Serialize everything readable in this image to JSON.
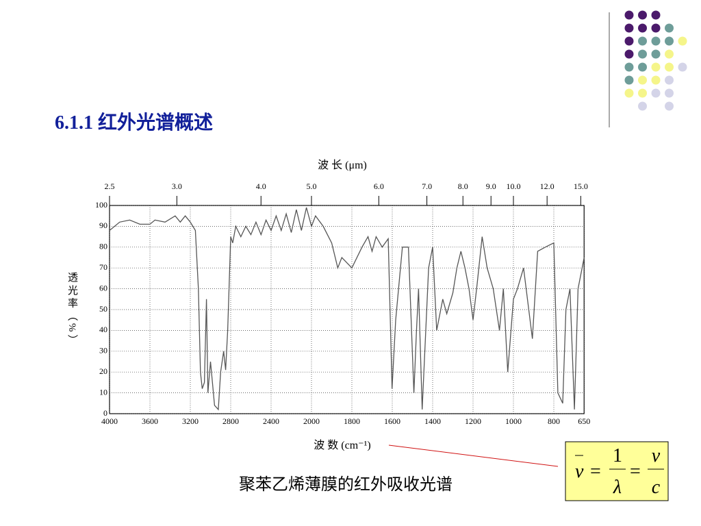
{
  "title": "6.1.1  红外光谱概述",
  "chart_data": {
    "type": "line",
    "top_label": "波  长 (μm)",
    "xlabel": "波  数 (cm⁻¹)",
    "ylabel": "透 光 率 （ % ）",
    "color": "#555555",
    "x": [
      4000,
      3900,
      3800,
      3700,
      3600,
      3550,
      3450,
      3350,
      3300,
      3250,
      3200,
      3150,
      3120,
      3100,
      3082,
      3060,
      3040,
      3026,
      3000,
      2960,
      2923,
      2900,
      2870,
      2850,
      2830,
      2800,
      2780,
      2750,
      2700,
      2650,
      2600,
      2550,
      2500,
      2450,
      2400,
      2350,
      2300,
      2250,
      2200,
      2150,
      2100,
      2050,
      2000,
      1980,
      1942,
      1900,
      1870,
      1850,
      1800,
      1750,
      1720,
      1700,
      1680,
      1650,
      1620,
      1601,
      1583,
      1550,
      1520,
      1493,
      1480,
      1470,
      1452,
      1420,
      1400,
      1380,
      1350,
      1330,
      1300,
      1280,
      1260,
      1240,
      1220,
      1200,
      1180,
      1155,
      1130,
      1100,
      1069,
      1050,
      1028,
      1000,
      980,
      950,
      906,
      880,
      842,
      800,
      780,
      756,
      740,
      720,
      698,
      680,
      650
    ],
    "values": [
      88,
      92,
      93,
      91,
      91,
      93,
      92,
      95,
      92,
      95,
      92,
      88,
      60,
      20,
      12,
      15,
      55,
      10,
      25,
      4,
      2,
      20,
      30,
      21,
      40,
      85,
      82,
      90,
      85,
      90,
      86,
      92,
      86,
      93,
      88,
      95,
      88,
      96,
      87,
      98,
      88,
      99,
      90,
      95,
      90,
      82,
      70,
      75,
      70,
      80,
      85,
      78,
      85,
      80,
      84,
      12,
      45,
      80,
      80,
      10,
      40,
      60,
      2,
      70,
      80,
      40,
      55,
      48,
      58,
      70,
      78,
      70,
      60,
      45,
      62,
      85,
      70,
      60,
      40,
      60,
      20,
      55,
      60,
      70,
      36,
      78,
      80,
      82,
      10,
      5,
      50,
      60,
      2,
      60,
      75
    ],
    "xlim": [
      4000,
      650
    ],
    "xticks": [
      4000,
      3600,
      3200,
      2800,
      2400,
      2000,
      1800,
      1600,
      1400,
      1200,
      1000,
      800,
      650
    ],
    "ylim": [
      0,
      100
    ],
    "yticks": [
      0,
      10,
      20,
      30,
      40,
      50,
      60,
      70,
      80,
      90,
      100
    ],
    "top_ticks": [
      2.5,
      {
        "value": 3.0,
        "label": "3.0"
      },
      {
        "value": 4.0,
        "label": "4.0"
      },
      {
        "value": 5.0,
        "label": "5.0"
      },
      {
        "value": 6.0,
        "label": "6.0"
      },
      {
        "value": 7.0,
        "label": "7.0"
      },
      {
        "value": 8.0,
        "label": "8.0"
      },
      {
        "value": 9.0,
        "label": "9.0"
      },
      {
        "value": 10.0,
        "label": "10.0"
      },
      {
        "value": 12.0,
        "label": "12.0"
      },
      {
        "value": 15.0,
        "label": "15.0"
      }
    ],
    "grid": true
  },
  "caption": "聚苯乙烯薄膜的红外吸收光谱",
  "formula": {
    "lhs": "ν",
    "eq": "=",
    "num1": "1",
    "den1": "λ",
    "num2": "ν",
    "den2": "c"
  }
}
